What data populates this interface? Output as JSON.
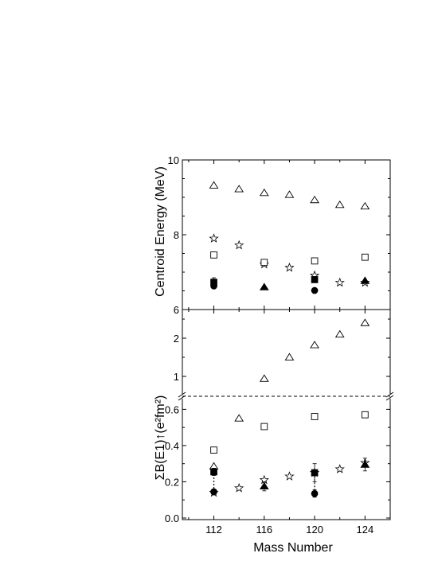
{
  "chart_data": [
    {
      "panel": "top",
      "type": "scatter",
      "ylabel": "Centroid Energy (MeV)",
      "ylim": [
        6,
        10
      ],
      "yticks": [
        6,
        8,
        10
      ],
      "xlim": [
        109.5,
        126
      ],
      "series": [
        {
          "marker": "open-triangle",
          "x": [
            112,
            114,
            116,
            118,
            120,
            122,
            124
          ],
          "y": [
            9.32,
            9.22,
            9.12,
            9.07,
            8.93,
            8.8,
            8.76
          ]
        },
        {
          "marker": "open-star",
          "x": [
            112,
            114,
            116,
            118,
            120,
            122,
            124
          ],
          "y": [
            7.9,
            7.72,
            7.21,
            7.12,
            6.91,
            6.72,
            6.72
          ]
        },
        {
          "marker": "open-square",
          "x": [
            112,
            116,
            120,
            124
          ],
          "y": [
            7.46,
            7.26,
            7.3,
            7.4
          ]
        },
        {
          "marker": "filled-square",
          "x": [
            112,
            120
          ],
          "y": [
            6.73,
            6.8
          ],
          "err": [
            0.12,
            0.08
          ]
        },
        {
          "marker": "filled-triangle",
          "x": [
            116,
            124
          ],
          "y": [
            6.6,
            6.77
          ]
        },
        {
          "marker": "filled-circle",
          "x": [
            112,
            120
          ],
          "y": [
            6.63,
            6.51
          ]
        }
      ]
    },
    {
      "panel": "bottom",
      "type": "scatter",
      "ylabel": "ΣB(E1)↑(e²fm²)",
      "xlabel": "Mass Number",
      "xlim": [
        109.5,
        126
      ],
      "xticks": [
        112,
        116,
        120,
        124
      ],
      "ylim_lower": [
        0,
        0.65
      ],
      "yticks_lower": [
        "0.0",
        "0.2",
        "0.4",
        "0.6"
      ],
      "ylim_upper": [
        0.5,
        2.5
      ],
      "yticks_upper": [
        1,
        2
      ],
      "series": [
        {
          "marker": "open-triangle",
          "x": [
            112,
            114,
            116,
            118,
            120,
            122,
            124
          ],
          "y": [
            0.285,
            0.55,
            0.94,
            1.5,
            1.82,
            2.1,
            2.4
          ]
        },
        {
          "marker": "open-star",
          "x": [
            112,
            114,
            116,
            118,
            120,
            122,
            124
          ],
          "y": [
            0.14,
            0.165,
            0.21,
            0.23,
            0.25,
            0.27,
            0.305
          ]
        },
        {
          "marker": "open-square",
          "x": [
            112,
            116,
            120,
            124
          ],
          "y": [
            0.375,
            0.505,
            0.56,
            0.57
          ]
        },
        {
          "marker": "filled-square",
          "x": [
            112,
            120
          ],
          "y": [
            0.255,
            0.25
          ],
          "err": [
            0.02,
            0.05
          ]
        },
        {
          "marker": "filled-triangle",
          "x": [
            116,
            124
          ],
          "y": [
            0.175,
            0.295
          ],
          "err": [
            0.025,
            0.035
          ]
        },
        {
          "marker": "filled-circle",
          "x": [
            112,
            120
          ],
          "y": [
            0.145,
            0.135
          ],
          "err": [
            0.01,
            0.02
          ]
        }
      ],
      "dotted_links": [
        {
          "x": 112,
          "y_from": 0.145,
          "y_to": 0.255
        },
        {
          "x": 120,
          "y_from": 0.135,
          "y_to": 0.25
        }
      ]
    }
  ]
}
